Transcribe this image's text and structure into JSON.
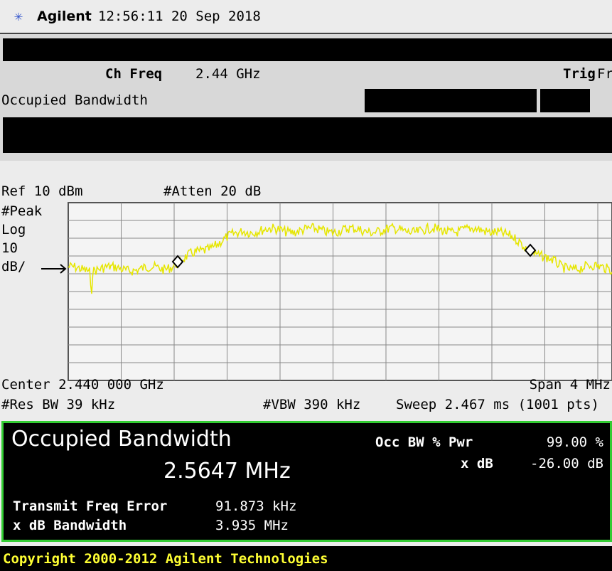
{
  "header": {
    "brand": "Agilent",
    "timestamp": "12:56:11  20 Sep 2018"
  },
  "settings": {
    "ch_freq_label": "Ch Freq",
    "ch_freq_value": "2.44 GHz",
    "trig_label": "Trig",
    "trig_value": "Free",
    "measurement": "Occupied Bandwidth"
  },
  "display": {
    "ref": "Ref 10 dBm",
    "atten": "#Atten 20 dB",
    "detector": "#Peak",
    "scale_type": "Log",
    "scale_value": "10",
    "scale_unit": "dB/",
    "center": "Center 2.440 000 GHz",
    "span": "Span 4 MHz",
    "res_bw": "#Res BW 39 kHz",
    "vbw": "#VBW 390 kHz",
    "sweep": "Sweep 2.467 ms (1001 pts)"
  },
  "results": {
    "title": "Occupied Bandwidth",
    "value": "2.5647 MHz",
    "occ_bw_label": "Occ BW % Pwr",
    "occ_bw_value": "99.00 %",
    "xdb_label": "x dB",
    "xdb_value": "-26.00 dB",
    "tfe_label": "Transmit Freq Error",
    "tfe_value": "91.873 kHz",
    "xdb_bw_label": "x dB Bandwidth",
    "xdb_bw_value": "3.935 MHz"
  },
  "footer": {
    "copyright": "Copyright 2000-2012 Agilent Technologies"
  }
}
